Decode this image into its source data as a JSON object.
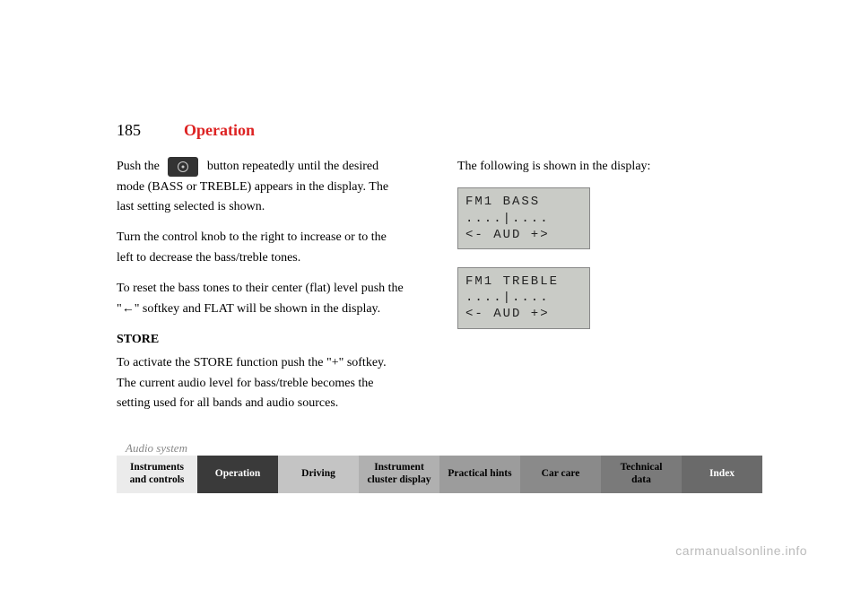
{
  "pageNumber": "185",
  "sectionTitle": "Operation",
  "leftColumn": {
    "intro1": "Push the ",
    "intro2": " button repeatedly until the desired mode (BASS or TREBLE) appears in the display. The last setting selected is shown.",
    "para2": "Turn the control knob to the right to increase or to the left to decrease the bass/treble tones.",
    "para3a": "To reset the bass tones to their center (flat) level push the \"",
    "para3b": "\" softkey and FLAT will be shown in the display.",
    "subhead": "STORE",
    "storeText": "To activate the STORE function push the \"+\" softkey. The current audio level for bass/treble becomes the setting used for all bands and audio sources."
  },
  "rightColumn": {
    "heading": "The following is shown in the display:",
    "lcd1": {
      "line1": "FM1  BASS",
      "line2": "....|....",
      "line3": "<-    AUD +>"
    },
    "lcd2": {
      "line1": "FM1 TREBLE",
      "line2": "....|....",
      "line3": "<-    AUD +>"
    }
  },
  "breadcrumb": "Audio system",
  "tabs": {
    "items": [
      {
        "label": "Instruments\nand controls",
        "bg": "#ebebeb",
        "fg": "#000000"
      },
      {
        "label": "Operation",
        "bg": "#3a3a3a",
        "fg": "#ffffff"
      },
      {
        "label": "Driving",
        "bg": "#c4c4c4",
        "fg": "#000000"
      },
      {
        "label": "Instrument\ncluster display",
        "bg": "#b0b0b0",
        "fg": "#000000"
      },
      {
        "label": "Practical hints",
        "bg": "#9c9c9c",
        "fg": "#000000"
      },
      {
        "label": "Car care",
        "bg": "#8a8a8a",
        "fg": "#000000"
      },
      {
        "label": "Technical\ndata",
        "bg": "#7a7a7a",
        "fg": "#000000"
      },
      {
        "label": "Index",
        "bg": "#6a6a6a",
        "fg": "#ffffff"
      }
    ]
  },
  "watermark": "carmanualsonline.info",
  "colors": {
    "sectionTitle": "#d22222",
    "breadcrumb": "#888888",
    "lcdBg": "#c9cbc6"
  }
}
